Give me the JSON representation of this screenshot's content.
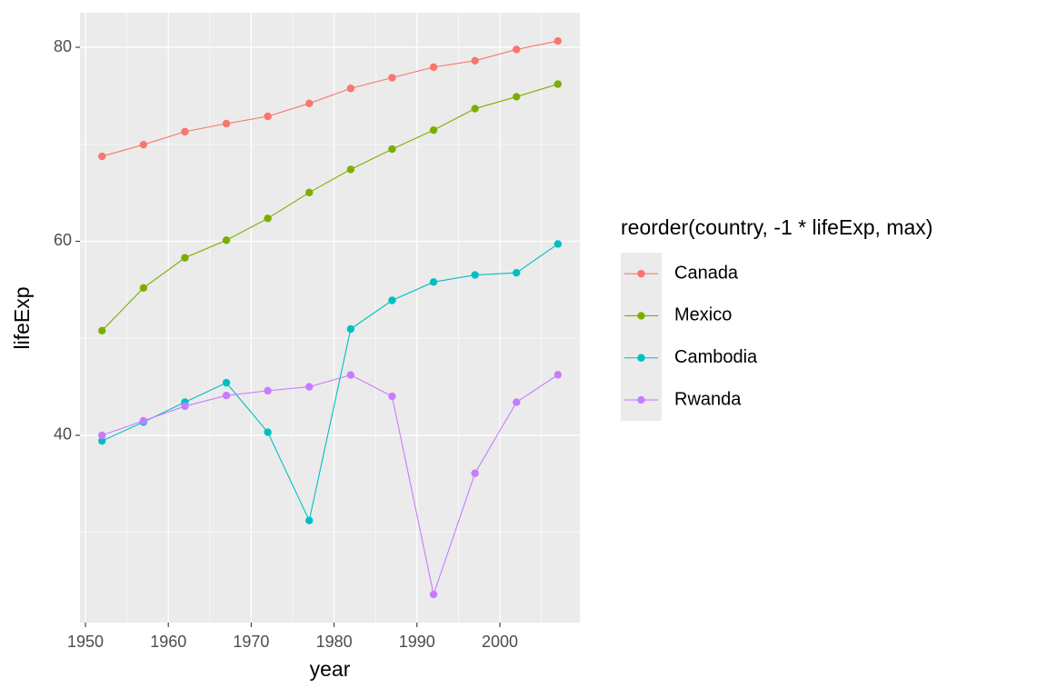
{
  "chart_data": {
    "type": "line",
    "x_label": "year",
    "y_label": "lifeExp",
    "legend_title": "reorder(country, -1 * lifeExp, max)",
    "legend_position": "right",
    "grid": true,
    "x": [
      1952,
      1957,
      1962,
      1967,
      1972,
      1977,
      1982,
      1987,
      1992,
      1997,
      2002,
      2007
    ],
    "series": [
      {
        "name": "Canada",
        "color": "#F8766D",
        "values": [
          68.75,
          69.96,
          71.3,
          72.13,
          72.88,
          74.21,
          75.76,
          76.86,
          77.95,
          78.61,
          79.77,
          80.65
        ]
      },
      {
        "name": "Mexico",
        "color": "#7CAE00",
        "values": [
          50.79,
          55.19,
          58.3,
          60.11,
          62.36,
          65.03,
          67.41,
          69.5,
          71.46,
          73.67,
          74.9,
          76.2
        ]
      },
      {
        "name": "Cambodia",
        "color": "#00BFC4",
        "values": [
          39.42,
          41.37,
          43.42,
          45.42,
          40.32,
          31.22,
          50.96,
          53.91,
          55.8,
          56.53,
          56.75,
          59.72
        ]
      },
      {
        "name": "Rwanda",
        "color": "#C77CFF",
        "values": [
          40.0,
          41.5,
          43.0,
          44.1,
          44.6,
          45.0,
          46.22,
          44.02,
          23.6,
          36.09,
          43.41,
          46.24
        ]
      }
    ],
    "xlim": [
      1949.34,
      2009.65
    ],
    "xticks": [
      1950,
      1960,
      1970,
      1980,
      1990,
      2000
    ],
    "ylim": [
      20.7,
      83.56
    ],
    "yticks": [
      40,
      60,
      80
    ]
  }
}
